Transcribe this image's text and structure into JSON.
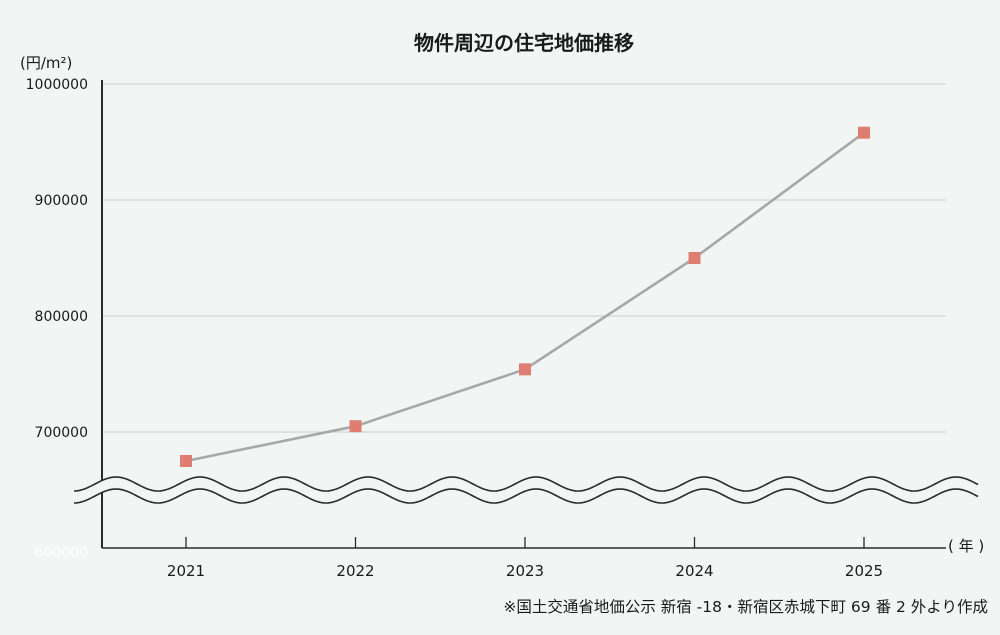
{
  "chart_data": {
    "type": "line",
    "title": "物件周辺の住宅地価推移",
    "ylabel": "(円/m²)",
    "xlabel": "( 年 )",
    "categories": [
      "2021",
      "2022",
      "2023",
      "2024",
      "2025"
    ],
    "series": [
      {
        "values": [
          675000,
          705000,
          754000,
          850000,
          958000
        ]
      }
    ],
    "y_ticks": [
      "1000000",
      "900000",
      "800000",
      "700000"
    ],
    "y_axis_floor_label": "600000",
    "ylim": [
      600000,
      1000000
    ],
    "axis_break": true,
    "grid": true,
    "line_color": "#a8a8a8",
    "marker_color": "#df7d72",
    "marker_shape": "square",
    "source": "※国土交通省地価公示 新宿 -18・新宿区赤城下町 69 番 2 外より作成"
  }
}
